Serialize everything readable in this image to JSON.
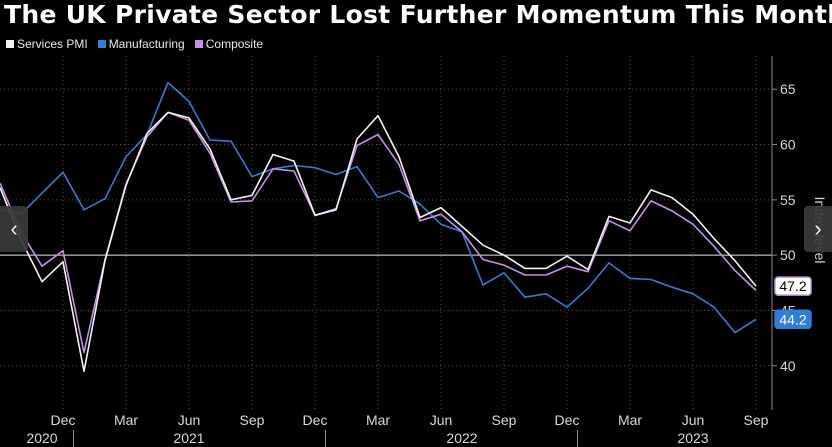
{
  "title": "The UK Private Sector Lost Further Momentum This Month",
  "nav": {
    "prev_icon": "‹",
    "next_icon": "›"
  },
  "chart_data": {
    "type": "line",
    "title": "The UK Private Sector Lost Further Momentum This Month",
    "xlabel": "",
    "ylabel": "Index level",
    "ylim": [
      36,
      68
    ],
    "y_ticks": [
      40,
      45,
      50,
      55,
      60,
      65
    ],
    "reference_line": 50,
    "x_months": [
      "Sep 2020",
      "Oct 2020",
      "Nov 2020",
      "Dec 2020",
      "Jan 2021",
      "Feb 2021",
      "Mar 2021",
      "Apr 2021",
      "May 2021",
      "Jun 2021",
      "Jul 2021",
      "Aug 2021",
      "Sep 2021",
      "Oct 2021",
      "Nov 2021",
      "Dec 2021",
      "Jan 2022",
      "Feb 2022",
      "Mar 2022",
      "Apr 2022",
      "May 2022",
      "Jun 2022",
      "Jul 2022",
      "Aug 2022",
      "Sep 2022",
      "Oct 2022",
      "Nov 2022",
      "Dec 2022",
      "Jan 2023",
      "Feb 2023",
      "Mar 2023",
      "Apr 2023",
      "May 2023",
      "Jun 2023",
      "Jul 2023",
      "Aug 2023",
      "Sep 2023"
    ],
    "x_tick_labels": [
      {
        "index": 3,
        "label": "Dec"
      },
      {
        "index": 6,
        "label": "Mar"
      },
      {
        "index": 9,
        "label": "Jun"
      },
      {
        "index": 12,
        "label": "Sep"
      },
      {
        "index": 15,
        "label": "Dec"
      },
      {
        "index": 18,
        "label": "Mar"
      },
      {
        "index": 21,
        "label": "Jun"
      },
      {
        "index": 24,
        "label": "Sep"
      },
      {
        "index": 27,
        "label": "Dec"
      },
      {
        "index": 30,
        "label": "Mar"
      },
      {
        "index": 33,
        "label": "Jun"
      },
      {
        "index": 36,
        "label": "Sep"
      }
    ],
    "year_labels": [
      {
        "index": 2,
        "label": "2020"
      },
      {
        "index": 9,
        "label": "2021"
      },
      {
        "index": 22,
        "label": "2022"
      },
      {
        "index": 33,
        "label": "2023"
      }
    ],
    "series": [
      {
        "name": "Services PMI",
        "color": "#f2f2f2",
        "values": [
          56.1,
          51.4,
          47.6,
          49.4,
          39.5,
          49.5,
          56.3,
          61.0,
          62.9,
          62.4,
          59.6,
          55.0,
          55.4,
          59.1,
          58.5,
          53.6,
          54.1,
          60.5,
          62.6,
          58.9,
          53.4,
          54.3,
          52.6,
          50.9,
          50.0,
          48.8,
          48.8,
          49.9,
          48.7,
          53.5,
          52.9,
          55.9,
          55.2,
          53.7,
          51.5,
          49.5,
          47.2
        ]
      },
      {
        "name": "Manufacturing",
        "color": "#2f7fd6",
        "values": [
          54.1,
          53.7,
          55.6,
          57.5,
          54.1,
          55.1,
          58.9,
          60.9,
          65.6,
          63.9,
          60.4,
          60.3,
          57.1,
          57.8,
          58.1,
          57.9,
          57.3,
          58.0,
          55.2,
          55.8,
          54.6,
          52.8,
          52.1,
          47.3,
          48.4,
          46.2,
          46.5,
          45.3,
          47.0,
          49.3,
          47.9,
          47.8,
          47.1,
          46.5,
          45.3,
          43.0,
          44.2
        ]
      },
      {
        "name": "Composite",
        "color": "#c790e6",
        "values": [
          56.5,
          52.1,
          49.0,
          50.4,
          41.2,
          49.6,
          56.4,
          60.7,
          62.9,
          62.2,
          59.2,
          54.8,
          54.9,
          57.8,
          57.6,
          53.6,
          54.2,
          59.9,
          60.9,
          58.2,
          53.1,
          53.7,
          52.1,
          49.6,
          49.1,
          48.2,
          48.2,
          49.0,
          48.5,
          53.1,
          52.2,
          54.9,
          54.0,
          52.8,
          50.8,
          48.6,
          46.8
        ]
      }
    ],
    "value_labels": [
      {
        "series": "Services PMI",
        "label": "47.2",
        "bg": "#ffffff",
        "fg": "#000000",
        "border": "#c790e6"
      },
      {
        "series": "Manufacturing",
        "label": "44.2",
        "bg": "#2f7fd6",
        "fg": "#ffffff",
        "border": "#2f7fd6"
      }
    ]
  }
}
